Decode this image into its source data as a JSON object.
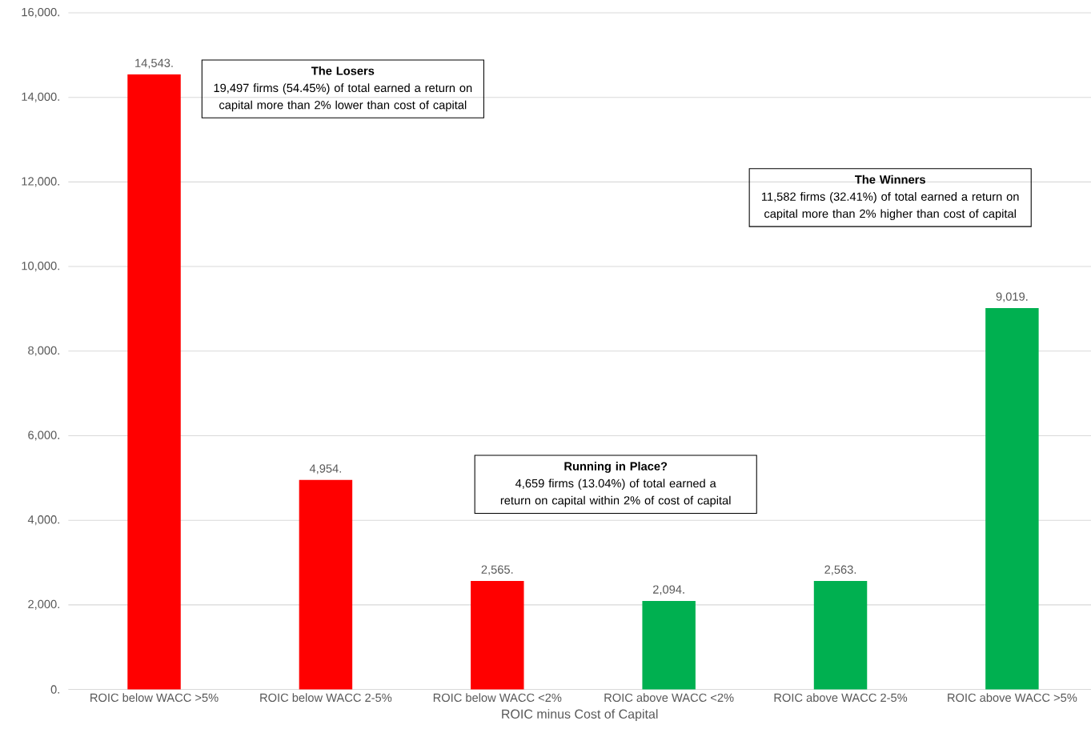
{
  "chart_data": {
    "type": "bar",
    "xlabel": "ROIC minus Cost of Capital",
    "categories": [
      "ROIC below WACC >5%",
      "ROIC below WACC 2-5%",
      "ROIC below WACC <2%",
      "ROIC above WACC <2%",
      "ROIC above WACC 2-5%",
      "ROIC above WACC >5%"
    ],
    "values": [
      14543,
      4954,
      2565,
      2094,
      2563,
      9019
    ],
    "value_labels": [
      "14,543.",
      "4,954.",
      "2,565.",
      "2,094.",
      "2,563.",
      "9,019."
    ],
    "colors": [
      "#ff0000",
      "#ff0000",
      "#ff0000",
      "#00b050",
      "#00b050",
      "#00b050"
    ],
    "ylim": [
      0,
      16000
    ],
    "yticks": [
      {
        "value": 0,
        "label": "0."
      },
      {
        "value": 2000,
        "label": "2,000."
      },
      {
        "value": 4000,
        "label": "4,000."
      },
      {
        "value": 6000,
        "label": "6,000."
      },
      {
        "value": 8000,
        "label": "8,000."
      },
      {
        "value": 10000,
        "label": "10,000."
      },
      {
        "value": 12000,
        "label": "12,000."
      },
      {
        "value": 14000,
        "label": "14,000."
      },
      {
        "value": 16000,
        "label": "16,000."
      }
    ],
    "grid": "y",
    "annotations": [
      "The Losers",
      "19,497 firms (54.45%) of total earned a return on capital more than 2% lower than cost of capital",
      "The Winners",
      "11,582 firms (32.41%) of total earned a return on capital more than  2% higher than cost of capital",
      "Running in Place?",
      "4,659 firms (13.04%) of total earned a return on capital within 2% of cost of capital"
    ]
  }
}
